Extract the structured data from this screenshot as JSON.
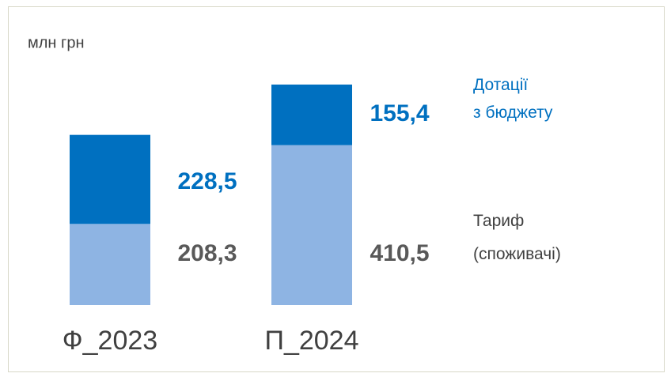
{
  "chart_data": {
    "type": "stacked_bar",
    "y_axis_label": "млн грн",
    "categories": [
      "Ф_2023",
      "П_2024"
    ],
    "series": [
      {
        "name": "Тариф\n(споживачі)",
        "color": "#8eb4e3",
        "label_color": "#595959",
        "values": [
          208.3,
          410.5
        ],
        "value_labels": [
          "208,3",
          "410,5"
        ]
      },
      {
        "name": "Дотації\nз бюджету",
        "color": "#0070c0",
        "label_color": "#0070c0",
        "values": [
          228.5,
          155.4
        ],
        "value_labels": [
          "228,5",
          "155,4"
        ]
      }
    ]
  }
}
